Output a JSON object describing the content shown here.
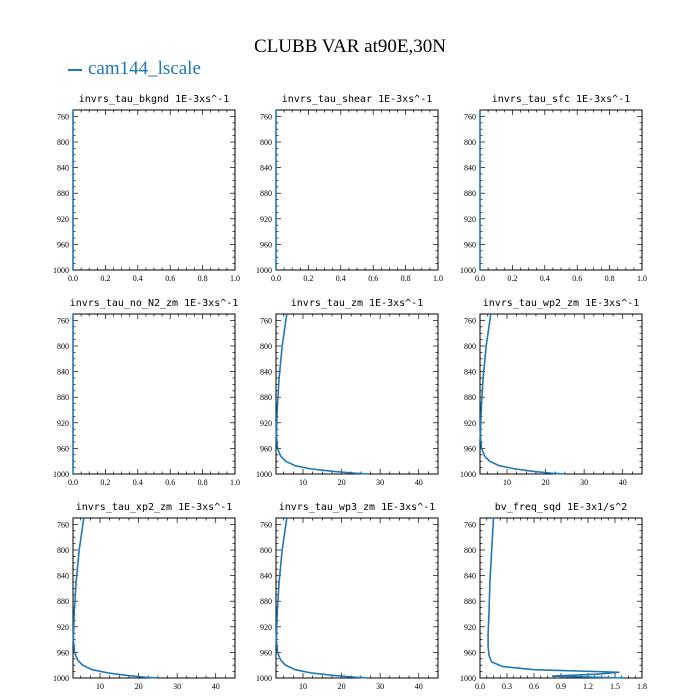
{
  "title": "CLUBB VAR at90E,30N",
  "legend": {
    "label": "cam144_lscale",
    "color": "#1f77b4"
  },
  "chart_data": [
    {
      "type": "line",
      "title": "invrs_tau_bkgnd",
      "units": "1E-3xs^-1",
      "xlim": [
        0,
        1.0
      ],
      "ylim": [
        1000,
        750
      ],
      "yticks": [
        760,
        800,
        840,
        880,
        920,
        960,
        1000
      ],
      "xticks": [
        0.0,
        0.2,
        0.4,
        0.6,
        0.8,
        1.0
      ],
      "xtick_labels": [
        "0.0",
        "0.2",
        "0.4",
        "0.6",
        "0.8",
        "1.0"
      ],
      "series": [
        {
          "x": [
            0,
            0,
            0,
            0
          ],
          "y": [
            750,
            850,
            950,
            1000
          ]
        }
      ]
    },
    {
      "type": "line",
      "title": "invrs_tau_shear",
      "units": "1E-3xs^-1",
      "xlim": [
        0,
        1.0
      ],
      "ylim": [
        1000,
        750
      ],
      "yticks": [
        760,
        800,
        840,
        880,
        920,
        960,
        1000
      ],
      "xticks": [
        0.0,
        0.2,
        0.4,
        0.6,
        0.8,
        1.0
      ],
      "xtick_labels": [
        "0.0",
        "0.2",
        "0.4",
        "0.6",
        "0.8",
        "1.0"
      ],
      "series": [
        {
          "x": [
            0,
            0,
            0,
            0
          ],
          "y": [
            750,
            850,
            950,
            1000
          ]
        }
      ]
    },
    {
      "type": "line",
      "title": "invrs_tau_sfc",
      "units": "1E-3xs^-1",
      "xlim": [
        0,
        1.0
      ],
      "ylim": [
        1000,
        750
      ],
      "yticks": [
        760,
        800,
        840,
        880,
        920,
        960,
        1000
      ],
      "xticks": [
        0.0,
        0.2,
        0.4,
        0.6,
        0.8,
        1.0
      ],
      "xtick_labels": [
        "0.0",
        "0.2",
        "0.4",
        "0.6",
        "0.8",
        "1.0"
      ],
      "series": [
        {
          "x": [
            0,
            0,
            0,
            0
          ],
          "y": [
            750,
            850,
            950,
            1000
          ]
        }
      ]
    },
    {
      "type": "line",
      "title": "invrs_tau_no_N2_zm",
      "units": "1E-3xs^-1",
      "xlim": [
        0,
        1.0
      ],
      "ylim": [
        1000,
        750
      ],
      "yticks": [
        760,
        800,
        840,
        880,
        920,
        960,
        1000
      ],
      "xticks": [
        0.0,
        0.2,
        0.4,
        0.6,
        0.8,
        1.0
      ],
      "xtick_labels": [
        "0.0",
        "0.2",
        "0.4",
        "0.6",
        "0.8",
        "1.0"
      ],
      "series": [
        {
          "x": [
            0,
            0,
            0,
            0
          ],
          "y": [
            750,
            850,
            950,
            1000
          ]
        }
      ]
    },
    {
      "type": "line",
      "title": "invrs_tau_zm",
      "units": "1E-3xs^-1",
      "xlim": [
        3,
        45
      ],
      "ylim": [
        1000,
        750
      ],
      "yticks": [
        760,
        800,
        840,
        880,
        920,
        960,
        1000
      ],
      "xticks": [
        10,
        20,
        30,
        40
      ],
      "xtick_labels": [
        "10",
        "20",
        "30",
        "40"
      ],
      "series": [
        {
          "x": [
            5.8,
            4.6,
            3.8,
            3.3,
            3.1,
            3.4,
            4.2,
            5.5,
            8.0,
            12.0,
            18.0,
            24.0,
            27.0
          ],
          "y": [
            750,
            800,
            850,
            900,
            940,
            960,
            972,
            980,
            987,
            992,
            996,
            999,
            1000
          ]
        }
      ]
    },
    {
      "type": "line",
      "title": "invrs_tau_wp2_zm",
      "units": "1E-3xs^-1",
      "xlim": [
        3,
        45
      ],
      "ylim": [
        1000,
        750
      ],
      "yticks": [
        760,
        800,
        840,
        880,
        920,
        960,
        1000
      ],
      "xticks": [
        10,
        20,
        30,
        40
      ],
      "xtick_labels": [
        "10",
        "20",
        "30",
        "40"
      ],
      "series": [
        {
          "x": [
            5.8,
            4.6,
            3.8,
            3.3,
            3.1,
            3.4,
            4.2,
            5.5,
            8.0,
            12.0,
            17.0,
            22.0,
            25.0
          ],
          "y": [
            750,
            800,
            850,
            900,
            940,
            960,
            972,
            980,
            987,
            992,
            996,
            999,
            1000
          ]
        }
      ]
    },
    {
      "type": "line",
      "title": "invrs_tau_xp2_zm",
      "units": "1E-3xs^-1",
      "xlim": [
        3,
        45
      ],
      "ylim": [
        1000,
        750
      ],
      "yticks": [
        760,
        800,
        840,
        880,
        920,
        960,
        1000
      ],
      "xticks": [
        10,
        20,
        30,
        40
      ],
      "xtick_labels": [
        "10",
        "20",
        "30",
        "40"
      ],
      "series": [
        {
          "x": [
            5.8,
            4.6,
            3.8,
            3.3,
            3.1,
            3.4,
            4.2,
            5.5,
            8.0,
            12.0,
            17.0,
            22.0,
            25.0
          ],
          "y": [
            750,
            800,
            850,
            900,
            940,
            960,
            972,
            980,
            987,
            992,
            996,
            999,
            1000
          ]
        }
      ]
    },
    {
      "type": "line",
      "title": "invrs_tau_wp3_zm",
      "units": "1E-3xs^-1",
      "xlim": [
        3,
        45
      ],
      "ylim": [
        1000,
        750
      ],
      "yticks": [
        760,
        800,
        840,
        880,
        920,
        960,
        1000
      ],
      "xticks": [
        10,
        20,
        30,
        40
      ],
      "xtick_labels": [
        "10",
        "20",
        "30",
        "40"
      ],
      "series": [
        {
          "x": [
            5.8,
            4.6,
            3.8,
            3.3,
            3.1,
            3.4,
            4.2,
            5.5,
            8.0,
            12.0,
            18.0,
            24.0,
            27.0
          ],
          "y": [
            750,
            800,
            850,
            900,
            940,
            960,
            972,
            980,
            987,
            992,
            996,
            999,
            1000
          ]
        }
      ]
    },
    {
      "type": "line",
      "title": "bv_freq_sqd",
      "units": "1E-3x1/s^2",
      "xlim": [
        0,
        1.8
      ],
      "ylim": [
        1000,
        750
      ],
      "yticks": [
        760,
        800,
        840,
        880,
        920,
        960,
        1000
      ],
      "xticks": [
        0.0,
        0.3,
        0.6,
        0.9,
        1.2,
        1.5,
        1.8
      ],
      "xtick_labels": [
        "0.0",
        "0.3",
        "0.6",
        "0.9",
        "1.2",
        "1.5",
        "1.8"
      ],
      "series": [
        {
          "x": [
            0.15,
            0.13,
            0.11,
            0.1,
            0.09,
            0.09,
            0.1,
            0.13,
            0.25,
            0.6,
            1.55,
            1.3,
            0.8,
            1.6
          ],
          "y": [
            750,
            800,
            850,
            900,
            930,
            950,
            965,
            975,
            982,
            987,
            991,
            994,
            997,
            1000
          ]
        }
      ]
    }
  ]
}
